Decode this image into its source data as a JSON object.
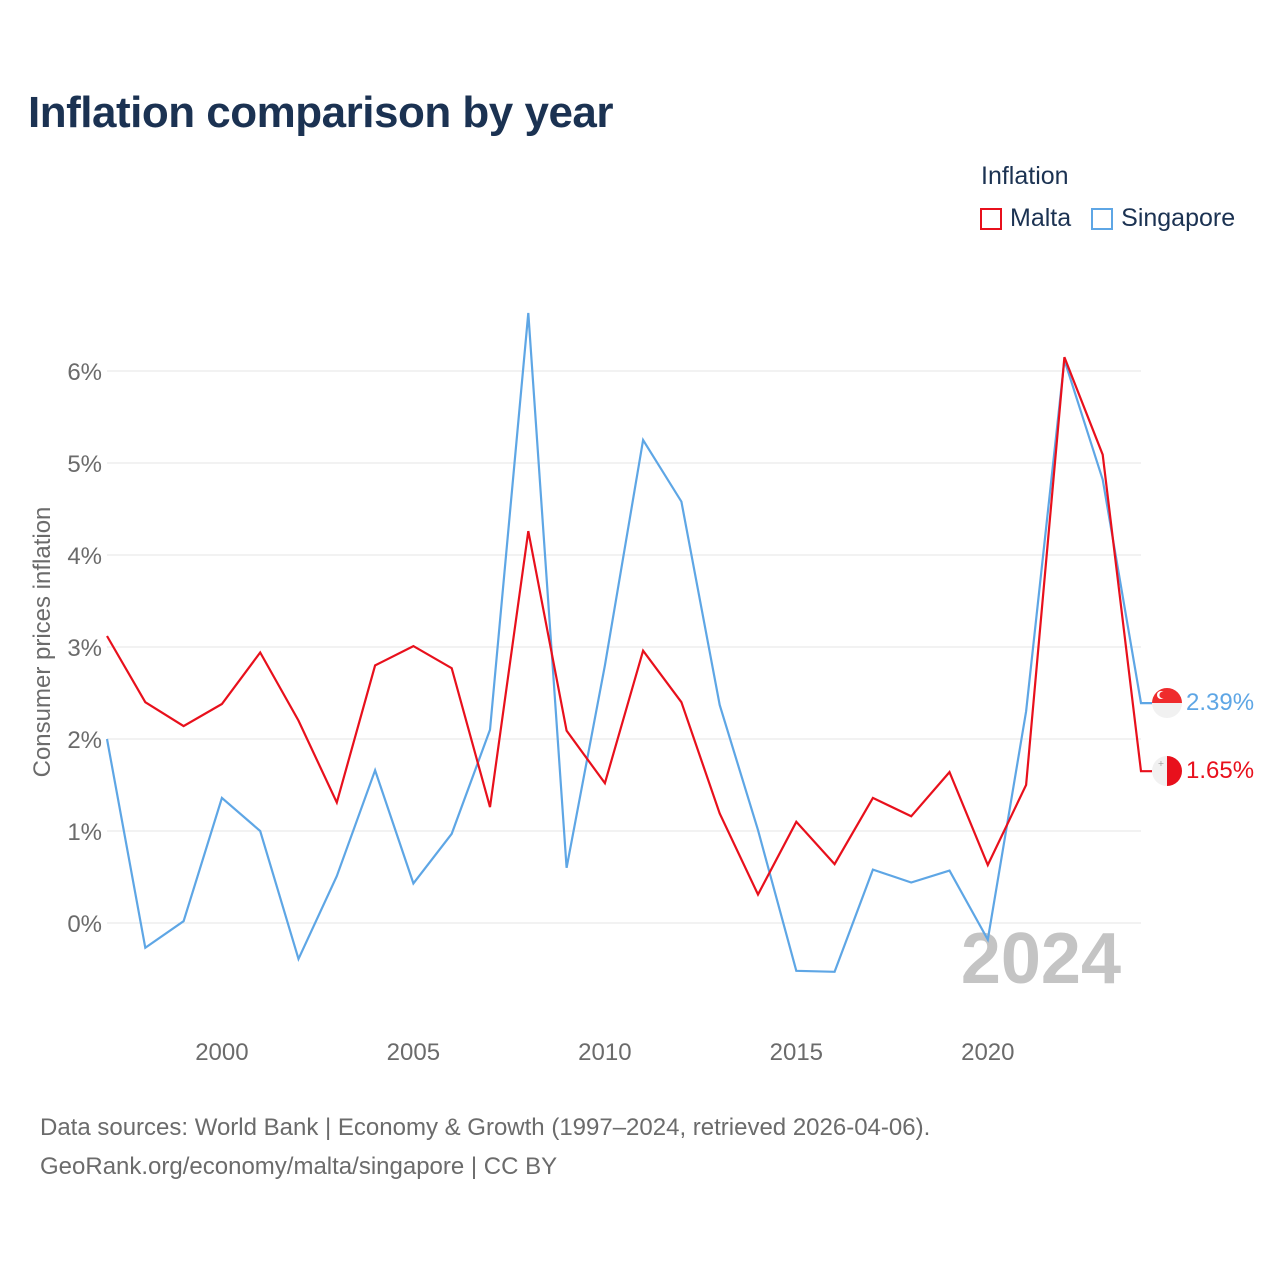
{
  "chart_data": {
    "type": "line",
    "title": "Inflation comparison by year",
    "ylabel": "Consumer prices inflation",
    "xlabel": "",
    "legend_title": "Inflation",
    "legend_position": "top-right",
    "x": [
      1997,
      1998,
      1999,
      2000,
      2001,
      2002,
      2003,
      2004,
      2005,
      2006,
      2007,
      2008,
      2009,
      2010,
      2011,
      2012,
      2013,
      2014,
      2015,
      2016,
      2017,
      2018,
      2019,
      2020,
      2021,
      2022,
      2023,
      2024
    ],
    "xlim": [
      1997,
      2024
    ],
    "ylim": [
      -1,
      6.9
    ],
    "x_ticks": [
      2000,
      2005,
      2010,
      2015,
      2020
    ],
    "y_ticks": [
      0,
      1,
      2,
      3,
      4,
      5,
      6
    ],
    "y_tick_labels": [
      "0%",
      "1%",
      "2%",
      "3%",
      "4%",
      "5%",
      "6%"
    ],
    "year_label": "2024",
    "series": [
      {
        "name": "Malta",
        "color": "#e8101c",
        "end_label": "1.65%",
        "flag_icon": "malta-flag-icon",
        "values": [
          3.12,
          2.4,
          2.14,
          2.38,
          2.94,
          2.2,
          1.31,
          2.8,
          3.01,
          2.77,
          1.26,
          4.26,
          2.09,
          1.52,
          2.96,
          2.4,
          1.19,
          0.31,
          1.1,
          0.64,
          1.36,
          1.16,
          1.64,
          0.63,
          1.5,
          6.15,
          5.09,
          1.65
        ]
      },
      {
        "name": "Singapore",
        "color": "#5ea6e5",
        "end_label": "2.39%",
        "flag_icon": "singapore-flag-icon",
        "values": [
          2.0,
          -0.27,
          0.02,
          1.36,
          1.0,
          -0.39,
          0.51,
          1.66,
          0.43,
          0.97,
          2.1,
          6.63,
          0.6,
          2.8,
          5.25,
          4.58,
          2.37,
          1.01,
          -0.52,
          -0.53,
          0.58,
          0.44,
          0.57,
          -0.18,
          2.3,
          6.12,
          4.82,
          2.39
        ]
      }
    ]
  },
  "footer": {
    "line1": "Data sources: World Bank | Economy & Growth (1997–2024, retrieved 2026-04-06).",
    "line2": "GeoRank.org/economy/malta/singapore | CC BY"
  }
}
